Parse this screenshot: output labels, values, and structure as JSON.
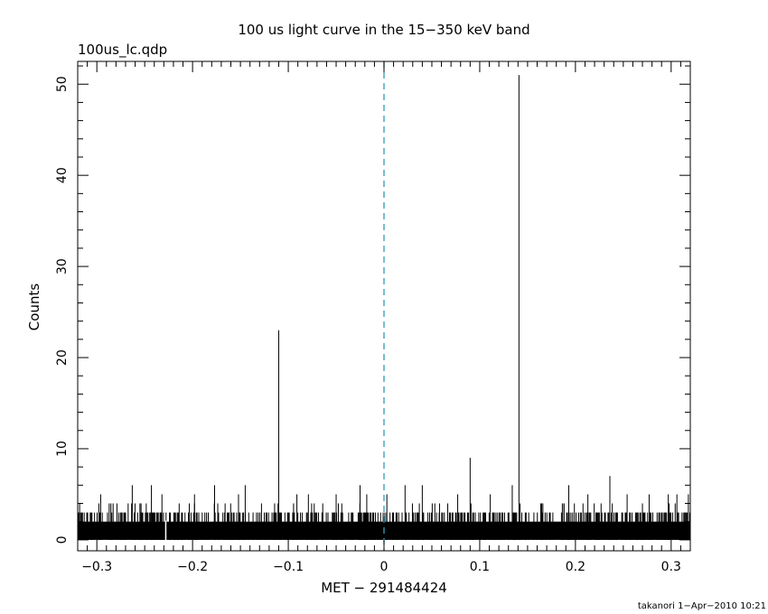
{
  "chart_data": {
    "type": "bar",
    "title": "100 us light curve in the 15−350 keV band",
    "file_label": "100us_lc.qdp",
    "xlabel": "MET − 291484424",
    "ylabel": "Counts",
    "xlim": [
      -0.32,
      0.32
    ],
    "ylim": [
      -1.2,
      52.5
    ],
    "x_ticks": [
      -0.3,
      -0.2,
      -0.1,
      0,
      0.1,
      0.2,
      0.3
    ],
    "x_tick_labels": [
      "−0.3",
      "−0.2",
      "−0.1",
      "0",
      "0.1",
      "0.2",
      "0.3"
    ],
    "y_ticks": [
      0,
      10,
      20,
      30,
      40,
      50
    ],
    "y_tick_labels": [
      "0",
      "10",
      "20",
      "30",
      "40",
      "50"
    ],
    "grid": false,
    "trigger_line": {
      "x": 0,
      "color": "#3399bb",
      "style": "dashed"
    },
    "bin_width": 0.0001,
    "background_level": 2,
    "peaks": [
      {
        "x": -0.318,
        "y": 4
      },
      {
        "x": -0.296,
        "y": 5
      },
      {
        "x": -0.283,
        "y": 4
      },
      {
        "x": -0.263,
        "y": 6
      },
      {
        "x": -0.255,
        "y": 4
      },
      {
        "x": -0.243,
        "y": 6
      },
      {
        "x": -0.232,
        "y": 5
      },
      {
        "x": -0.214,
        "y": 4
      },
      {
        "x": -0.198,
        "y": 5
      },
      {
        "x": -0.177,
        "y": 6
      },
      {
        "x": -0.166,
        "y": 4
      },
      {
        "x": -0.152,
        "y": 5
      },
      {
        "x": -0.145,
        "y": 6
      },
      {
        "x": -0.128,
        "y": 4
      },
      {
        "x": -0.11,
        "y": 23
      },
      {
        "x": -0.091,
        "y": 5
      },
      {
        "x": -0.079,
        "y": 5
      },
      {
        "x": -0.064,
        "y": 4
      },
      {
        "x": -0.05,
        "y": 5
      },
      {
        "x": -0.025,
        "y": 6
      },
      {
        "x": -0.018,
        "y": 5
      },
      {
        "x": 0.003,
        "y": 5
      },
      {
        "x": 0.022,
        "y": 6
      },
      {
        "x": 0.04,
        "y": 6
      },
      {
        "x": 0.058,
        "y": 4
      },
      {
        "x": 0.077,
        "y": 5
      },
      {
        "x": 0.09,
        "y": 9
      },
      {
        "x": 0.111,
        "y": 5
      },
      {
        "x": 0.134,
        "y": 6
      },
      {
        "x": 0.141,
        "y": 51
      },
      {
        "x": 0.166,
        "y": 4
      },
      {
        "x": 0.188,
        "y": 4
      },
      {
        "x": 0.193,
        "y": 6
      },
      {
        "x": 0.213,
        "y": 5
      },
      {
        "x": 0.236,
        "y": 7
      },
      {
        "x": 0.254,
        "y": 5
      },
      {
        "x": 0.277,
        "y": 5
      },
      {
        "x": 0.297,
        "y": 5
      },
      {
        "x": 0.306,
        "y": 5
      },
      {
        "x": 0.318,
        "y": 5
      }
    ],
    "dips": [
      {
        "x": -0.228,
        "y": 0
      }
    ]
  },
  "footer": "takanori  1−Apr−2010 10:21"
}
